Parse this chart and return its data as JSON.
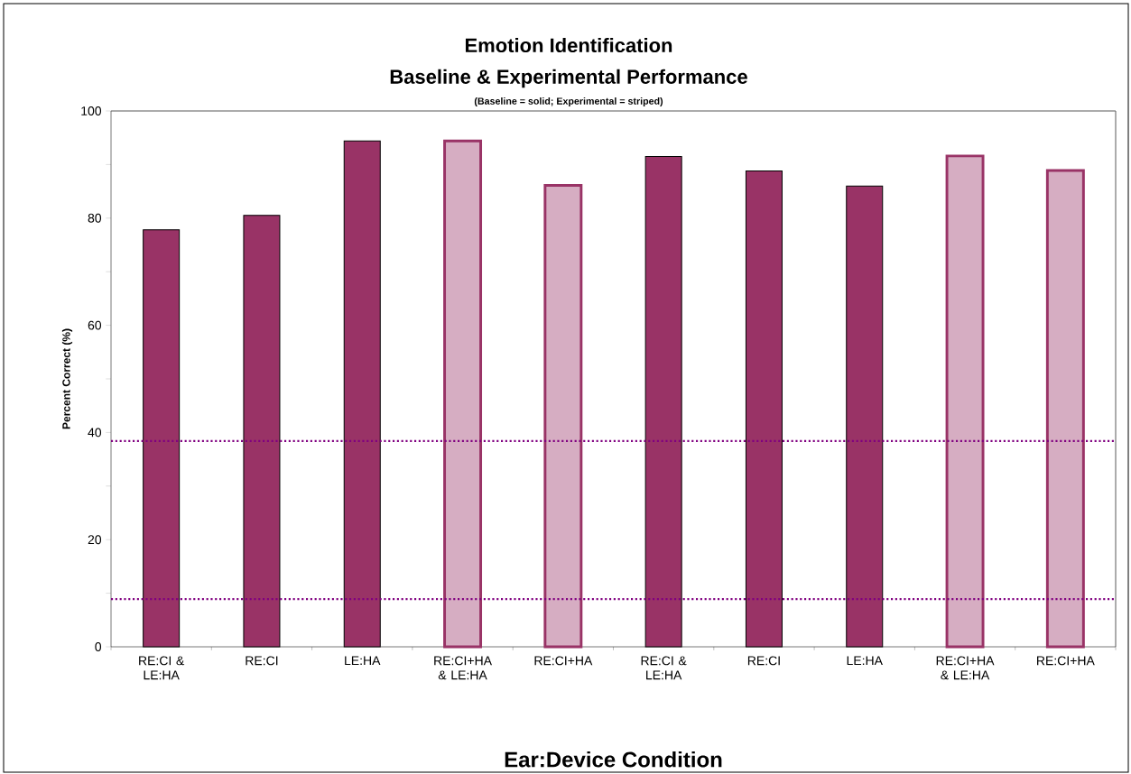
{
  "chart_data": {
    "type": "bar",
    "title": "Emotion Identification",
    "subtitle": "Baseline & Experimental Performance",
    "annotations": [
      "(Baseline = solid; Experimental = striped)"
    ],
    "xlabel": "Ear:Device Condition",
    "ylabel": "Percent Correct (%)",
    "categories": [
      "RE:CI & LE:HA",
      "RE:CI",
      "LE:HA",
      "RE:CI+HA & LE:HA",
      "RE:CI+HA",
      "RE:CI & LE:HA",
      "RE:CI",
      "LE:HA",
      "RE:CI+HA & LE:HA",
      "RE:CI+HA"
    ],
    "series": [
      {
        "color": "#993366",
        "values": [
          77.8,
          80.5,
          94.4,
          null,
          null,
          91.5,
          88.8,
          86.0,
          null,
          null
        ]
      },
      {
        "color": "#993366",
        "values": [
          null,
          null,
          null,
          94.4,
          86.1,
          null,
          null,
          null,
          91.6,
          88.9
        ]
      }
    ],
    "ylim": [
      0,
      100
    ],
    "yticks": [
      0,
      {
        "value": 10,
        "label": null
      },
      20,
      {
        "value": 30,
        "label": null
      },
      40,
      {
        "value": 50,
        "label": null
      },
      60,
      {
        "value": 70,
        "label": null
      },
      80,
      {
        "value": 90,
        "label": null
      },
      100
    ],
    "ref_lines": [
      {
        "axis": "y",
        "value": 38.4,
        "color": "#800080",
        "line_style": "dotted"
      },
      {
        "axis": "y",
        "value": 8.9,
        "color": "#800080",
        "line_style": "dotted"
      }
    ],
    "grid": false
  }
}
